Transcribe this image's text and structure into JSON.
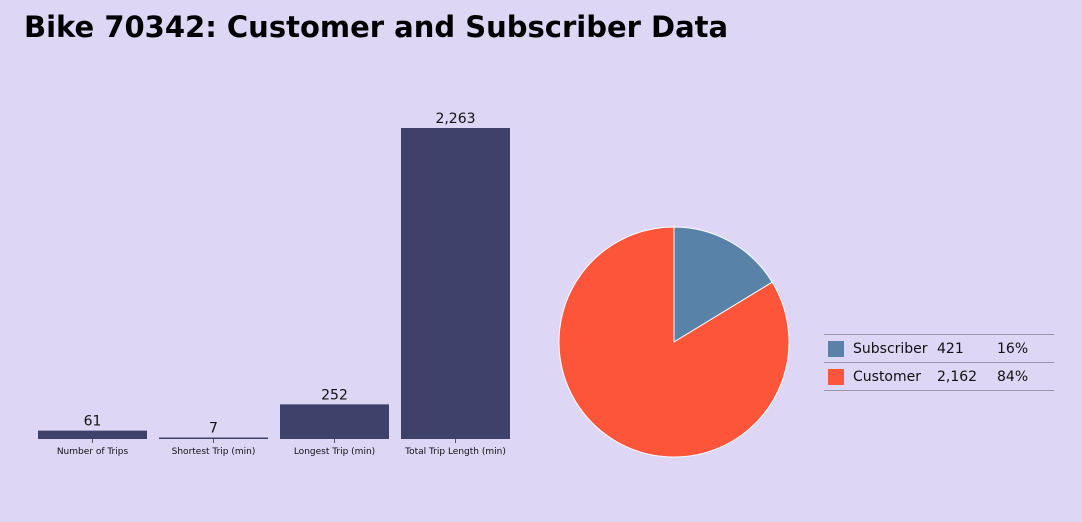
{
  "header": {
    "title": "Bike 70342: Customer and Subscriber Data"
  },
  "chart_data": [
    {
      "type": "bar",
      "categories": [
        "Number of Trips",
        "Shortest Trip (min)",
        "Longest Trip (min)",
        "Total Trip Length (min)"
      ],
      "values": [
        61,
        7,
        252,
        2263
      ],
      "value_labels": [
        "61",
        "7",
        "252",
        "2,263"
      ],
      "ylim": [
        0,
        2263
      ],
      "color": "#3e426b",
      "grid": false
    },
    {
      "type": "pie",
      "slices": [
        {
          "name": "Subscriber",
          "value": 421,
          "value_label": "421",
          "percent_label": "16%",
          "color": "#5882a7"
        },
        {
          "name": "Customer",
          "value": 2162,
          "value_label": "2,162",
          "percent_label": "84%",
          "color": "#fd5539"
        }
      ],
      "legend_position": "right"
    }
  ]
}
